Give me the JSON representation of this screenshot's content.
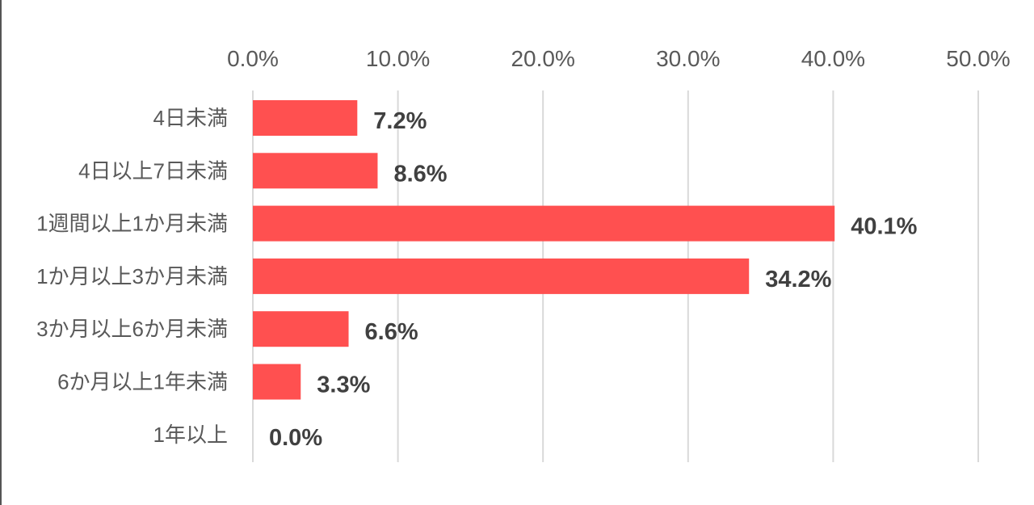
{
  "chart_data": {
    "type": "bar",
    "orientation": "horizontal",
    "categories": [
      "4日未満",
      "4日以上7日未満",
      "1週間以上1か月未満",
      "1か月以上3か月未満",
      "3か月以上6か月未満",
      "6か月以上1年未満",
      "1年以上"
    ],
    "values": [
      7.2,
      8.6,
      40.1,
      34.2,
      6.6,
      3.3,
      0.0
    ],
    "data_labels": [
      "7.2%",
      "8.6%",
      "40.1%",
      "34.2%",
      "6.6%",
      "3.3%",
      "0.0%"
    ],
    "xlim": [
      0,
      50
    ],
    "x_ticks": [
      0,
      10,
      20,
      30,
      40,
      50
    ],
    "x_tick_labels": [
      "0.0%",
      "10.0%",
      "20.0%",
      "30.0%",
      "40.0%",
      "50.0%"
    ],
    "x_axis_position": "top",
    "grid": true,
    "legend": "none",
    "title": "",
    "xlabel": "",
    "ylabel": "",
    "colors": {
      "bar": "#ff5050",
      "grid": "#d9d9d9",
      "tick_text": "#595959",
      "value_text": "#404040"
    }
  }
}
